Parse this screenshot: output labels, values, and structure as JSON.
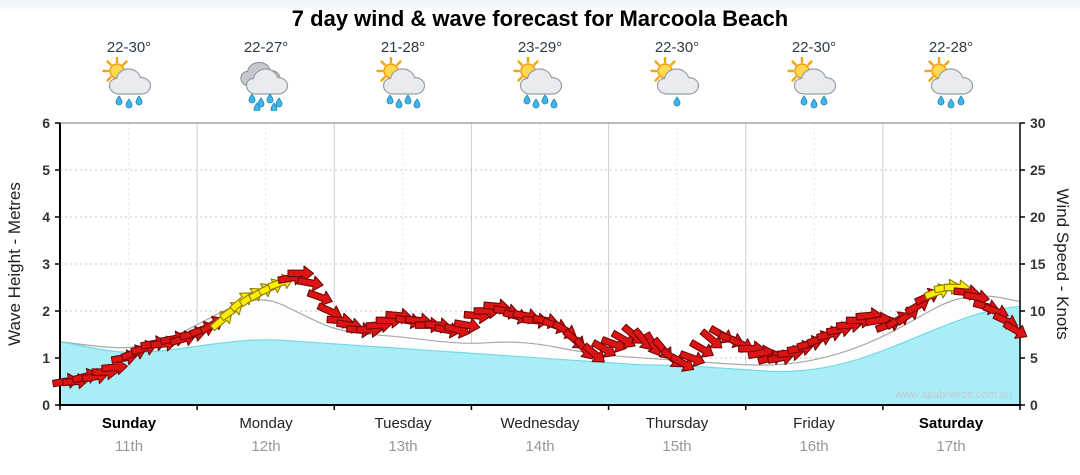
{
  "title": "7 day wind & wave forecast for Marcoola Beach",
  "watermark": "www.seabreeze.com.au",
  "chart_data": {
    "type": "area+wind_vectors",
    "title": "7 day wind & wave forecast for Marcoola Beach",
    "left_axis": {
      "label": "Wave Height - Metres",
      "min": 0,
      "max": 6,
      "ticks": [
        0,
        1,
        2,
        3,
        4,
        5,
        6
      ]
    },
    "right_axis": {
      "label": "Wind Speed - Knots",
      "min": 0,
      "max": 30,
      "ticks": [
        0,
        5,
        10,
        15,
        20,
        25,
        30
      ]
    },
    "days": [
      {
        "name": "Sunday",
        "date": "11th",
        "temp": "22-30°",
        "emphasis": true,
        "icon": {
          "sun": true,
          "clouds": 1,
          "drops": 3
        }
      },
      {
        "name": "Monday",
        "date": "12th",
        "temp": "22-27°",
        "emphasis": false,
        "icon": {
          "sun": false,
          "clouds": 2,
          "drops": 6
        }
      },
      {
        "name": "Tuesday",
        "date": "13th",
        "temp": "21-28°",
        "emphasis": false,
        "icon": {
          "sun": true,
          "clouds": 1,
          "drops": 4
        }
      },
      {
        "name": "Wednesday",
        "date": "14th",
        "temp": "23-29°",
        "emphasis": false,
        "icon": {
          "sun": true,
          "clouds": 1,
          "drops": 4
        }
      },
      {
        "name": "Thursday",
        "date": "15th",
        "temp": "22-30°",
        "emphasis": false,
        "icon": {
          "sun": true,
          "clouds": 1,
          "drops": 1
        }
      },
      {
        "name": "Friday",
        "date": "16th",
        "temp": "22-30°",
        "emphasis": false,
        "icon": {
          "sun": true,
          "clouds": 1,
          "drops": 3
        }
      },
      {
        "name": "Saturday",
        "date": "17th",
        "temp": "22-28°",
        "emphasis": true,
        "icon": {
          "sun": true,
          "clouds": 1,
          "drops": 3
        }
      }
    ],
    "wave_height_m": [
      1.35,
      1.2,
      1.1,
      1.15,
      1.25,
      1.35,
      1.4,
      1.35,
      1.3,
      1.25,
      1.2,
      1.15,
      1.1,
      1.05,
      1.0,
      0.95,
      0.9,
      0.85,
      0.85,
      0.8,
      0.75,
      0.7,
      0.75,
      0.9,
      1.15,
      1.45,
      1.75,
      2.0,
      2.1
    ],
    "swell_height_m": [
      1.35,
      1.25,
      1.2,
      1.35,
      1.7,
      2.1,
      2.3,
      1.95,
      1.6,
      1.5,
      1.45,
      1.35,
      1.3,
      1.35,
      1.3,
      1.15,
      1.05,
      1.0,
      0.95,
      0.9,
      0.85,
      0.85,
      0.95,
      1.15,
      1.45,
      1.85,
      2.25,
      2.35,
      2.2
    ],
    "wind_arrows": {
      "per_day": 14,
      "speeds_kt": [
        2.5,
        2.5,
        3,
        3,
        3.5,
        4,
        5,
        5.5,
        6,
        6.5,
        6.5,
        7,
        7,
        7.5,
        8,
        8.5,
        9,
        10,
        11,
        11.5,
        12,
        12.5,
        13,
        13.5,
        14,
        13,
        11.5,
        10,
        9,
        8.5,
        8,
        8,
        8.5,
        9,
        9.5,
        9,
        9,
        8.5,
        8.5,
        8,
        8,
        8.5,
        9.5,
        10,
        10.5,
        10,
        9.5,
        9.5,
        9,
        9,
        8.5,
        8,
        7,
        6,
        5.5,
        6,
        6.5,
        7,
        7.5,
        7,
        6.5,
        6,
        5,
        4.5,
        5,
        6,
        7,
        7.5,
        7,
        6.5,
        6,
        5.5,
        5,
        5,
        5.5,
        6,
        6.5,
        7,
        7.5,
        8,
        8.5,
        9,
        9.5,
        9,
        8.5,
        9,
        9.5,
        10.5,
        11.5,
        12,
        12.5,
        12.5,
        12,
        11.5,
        10.5,
        10,
        9,
        8
      ],
      "rotations_deg": [
        -10,
        -5,
        -15,
        -10,
        0,
        -5,
        -10,
        -20,
        -15,
        -10,
        -5,
        -10,
        -15,
        -10,
        -20,
        -30,
        -40,
        -35,
        -40,
        -35,
        -30,
        -25,
        -20,
        -10,
        0,
        10,
        20,
        25,
        5,
        10,
        5,
        0,
        -5,
        0,
        5,
        10,
        5,
        0,
        5,
        10,
        15,
        10,
        5,
        0,
        5,
        10,
        15,
        10,
        5,
        10,
        20,
        30,
        40,
        50,
        40,
        30,
        20,
        30,
        40,
        50,
        60,
        50,
        40,
        30,
        20,
        30,
        40,
        30,
        20,
        25,
        0,
        -10,
        -15,
        -10,
        -5,
        -10,
        -15,
        -20,
        -15,
        -10,
        -5,
        0,
        -5,
        -10,
        -20,
        -30,
        -35,
        -30,
        -25,
        -20,
        -10,
        0,
        5,
        10,
        15,
        20,
        25,
        30
      ],
      "yellow_ranges": [
        [
          16,
          22
        ],
        [
          89,
          91
        ]
      ]
    },
    "colors": {
      "wave_fill": "#a9eef7",
      "wave_stroke": "#74d9e6",
      "swell_fill": "#fdfdfd",
      "swell_stroke": "#a9a9a9",
      "arrow_red": "#dd1414",
      "arrow_red_stroke": "#700707",
      "arrow_yellow": "#ffee00",
      "arrow_yellow_stroke": "#8f7a00",
      "grid": "#c8c8c8"
    }
  }
}
